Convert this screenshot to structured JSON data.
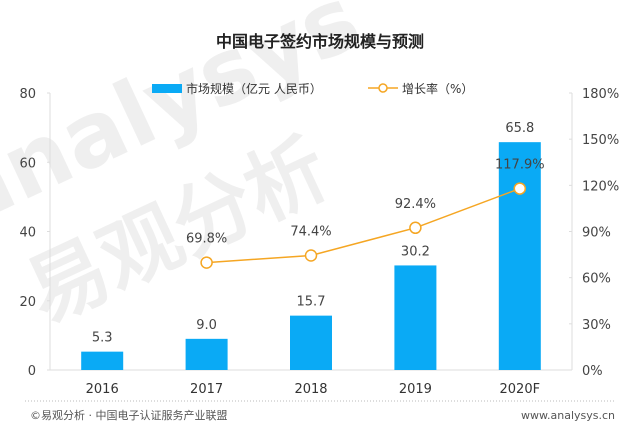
{
  "chart_data": {
    "type": "bar",
    "title": "中国电子签约市场规模与预测",
    "categories": [
      "2016",
      "2017",
      "2018",
      "2019",
      "2020F"
    ],
    "series": [
      {
        "name": "市场规模（亿元 人民币）",
        "type": "bar",
        "axis": "left",
        "color": "#0aaaf5",
        "values": [
          5.3,
          9.0,
          15.7,
          30.2,
          65.8
        ],
        "labels": [
          "5.3",
          "9.0",
          "15.7",
          "30.2",
          "65.8"
        ]
      },
      {
        "name": "增长率（%）",
        "type": "line",
        "axis": "right",
        "color": "#f5a623",
        "values": [
          null,
          69.8,
          74.4,
          92.4,
          117.9
        ],
        "labels": [
          "",
          "69.8%",
          "74.4%",
          "92.4%",
          "117.9%"
        ]
      }
    ],
    "y_left": {
      "ylim": [
        0,
        80
      ],
      "ticks": [
        "0",
        "20",
        "40",
        "60",
        "80"
      ]
    },
    "y_right": {
      "ylim": [
        0,
        180
      ],
      "ticks": [
        "0%",
        "30%",
        "60%",
        "90%",
        "120%",
        "150%",
        "180%"
      ]
    },
    "xlabel": "",
    "ylabel": "",
    "grid": false,
    "legend_position": "top-center"
  },
  "footer": {
    "source": "©易观分析 · 中国电子认证服务产业联盟",
    "website": "www.analysys.cn"
  },
  "watermark": {
    "line1": "analysys",
    "line2": "易观分析"
  }
}
